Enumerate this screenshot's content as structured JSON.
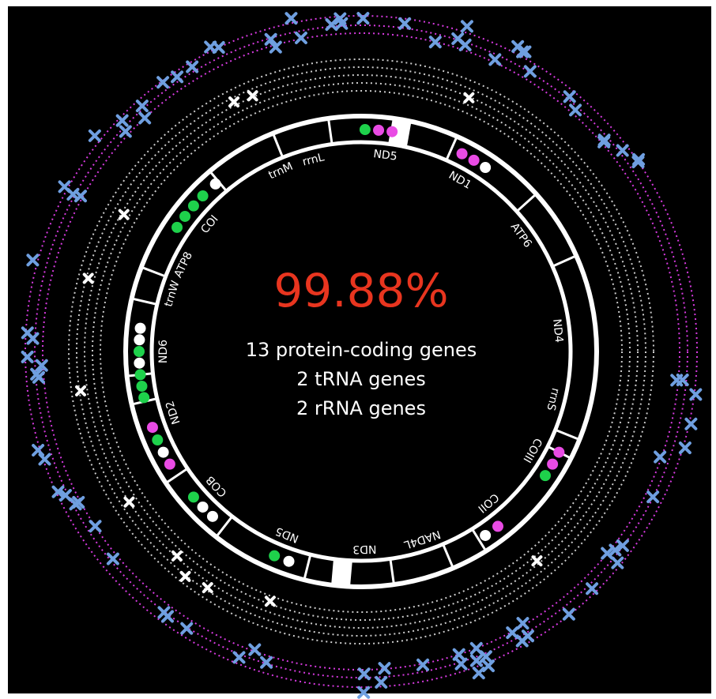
{
  "center": {
    "percent": "99.88%",
    "lines": [
      "13 protein-coding genes",
      "2 tRNA genes",
      "2 rRNA genes"
    ]
  },
  "genes": [
    {
      "label": "ND5",
      "angle": 7
    },
    {
      "label": "ND1",
      "angle": 30
    },
    {
      "label": "ATP6",
      "angle": 54
    },
    {
      "label": "ND4",
      "angle": 84
    },
    {
      "label": "rrnS",
      "angle": 104
    },
    {
      "label": "COIII",
      "angle": 120
    },
    {
      "label": "COII",
      "angle": 140
    },
    {
      "label": "NAD4L",
      "angle": 162
    },
    {
      "label": "ND3",
      "angle": 179
    },
    {
      "label": "ND5",
      "angle": 202
    },
    {
      "label": "COB",
      "angle": 227
    },
    {
      "label": "ND2",
      "angle": 252
    },
    {
      "label": "ND6",
      "angle": 270
    },
    {
      "label": "trnW",
      "angle": 287
    },
    {
      "label": "ATP8",
      "angle": 296
    },
    {
      "label": "COI",
      "angle": 310
    },
    {
      "label": "trnM",
      "angle": 336
    },
    {
      "label": "rrnL",
      "angle": 346
    }
  ]
}
